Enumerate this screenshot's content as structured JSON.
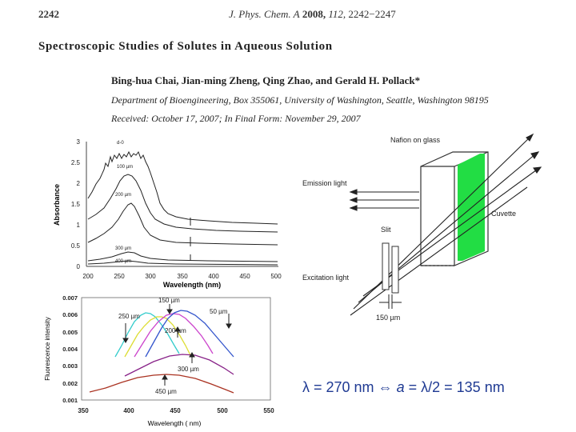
{
  "header": {
    "page_number": "2242",
    "journal": "J. Phys. Chem. A",
    "year": "2008,",
    "volume": "112,",
    "pages": "2242−2247"
  },
  "paper": {
    "title": "Spectroscopic Studies of Solutes in Aqueous Solution",
    "authors": "Bing-hua Chai, Jian-ming Zheng, Qing Zhao, and Gerald H. Pollack*",
    "affiliation": "Department of Bioengineering, Box 355061, University of Washington, Seattle, Washington 98195",
    "received": "Received: October 17, 2007; In Final Form: November 29, 2007"
  },
  "absorbance_plot": {
    "ylabel": "Absorbance",
    "xlabel": "Wavelength (nm)",
    "x_ticks": [
      "200",
      "250",
      "300",
      "350",
      "400",
      "450",
      "500"
    ],
    "y_ticks": [
      "0",
      "0.5",
      "1",
      "1.5",
      "2",
      "2.5",
      "3"
    ],
    "curve_labels": [
      "d-0",
      "100 µm",
      "200 µm",
      "300 µm",
      "400 µm"
    ]
  },
  "fluorescence_plot": {
    "ylabel": "Fluorescence intensity",
    "xlabel": "Wavelength ( nm)",
    "x_ticks": [
      "350",
      "400",
      "450",
      "500",
      "550"
    ],
    "y_ticks": [
      "0.001",
      "0.002",
      "0.003",
      "0.004",
      "0.005",
      "0.006",
      "0.007"
    ],
    "curve_labels": [
      "150 µm",
      "50 µm",
      "250 µm",
      "200 µm",
      "300 µm",
      "450 µm"
    ],
    "colors": [
      "#33cccc",
      "#dddd33",
      "#cc44cc",
      "#3355cc",
      "#882288",
      "#aa3322"
    ]
  },
  "diagram": {
    "nafion_label": "Nafion on glass",
    "emission_label": "Emission light",
    "cuvette_label": "Cuvette",
    "slit_label": "Slit",
    "excitation_label": "Excitation light",
    "slit_width_label": "150 µm",
    "nafion_color": "#22dd44"
  },
  "formula": {
    "lambda_part": "λ = 270 nm",
    "arrow": "⇔",
    "a_symbol": "a",
    "rest": "= λ/2 = 135  nm"
  }
}
